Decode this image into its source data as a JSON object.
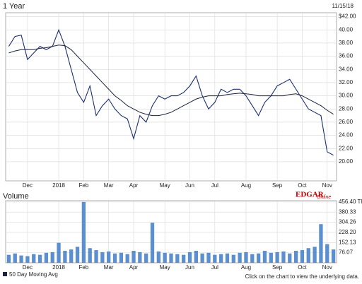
{
  "chart_data": [
    {
      "type": "line",
      "title": "1 Year",
      "subtitle": "11/15/18",
      "categories": [
        null,
        null,
        null,
        "Dec",
        null,
        null,
        null,
        null,
        "2018",
        null,
        null,
        null,
        "Feb",
        null,
        null,
        null,
        "Mar",
        null,
        null,
        null,
        "Apr",
        null,
        null,
        null,
        null,
        "May",
        null,
        null,
        null,
        "Jun",
        null,
        null,
        null,
        "Jul",
        null,
        null,
        null,
        null,
        "Aug",
        null,
        null,
        null,
        null,
        "Sep",
        null,
        null,
        null,
        "Oct",
        null,
        null,
        null,
        "Nov",
        null
      ],
      "series": [
        {
          "color": "#1c2f6e",
          "values": [
            37.5,
            39.0,
            39.2,
            35.5,
            36.5,
            37.5,
            37.0,
            37.5,
            40.0,
            37.5,
            34.0,
            30.5,
            29.0,
            31.5,
            27.0,
            28.5,
            29.5,
            28.0,
            27.0,
            26.5,
            23.5,
            27.0,
            26.0,
            28.5,
            30.0,
            29.5,
            30.0,
            30.0,
            30.5,
            31.5,
            33.0,
            30.0,
            28.0,
            29.0,
            31.0,
            30.5,
            31.0,
            31.0,
            30.0,
            28.5,
            27.0,
            29.0,
            30.0,
            31.5,
            32.0,
            32.5,
            31.0,
            29.5,
            28.0,
            27.5,
            27.0,
            21.5,
            21.0
          ]
        },
        {
          "name": "50 Day Moving Avg",
          "color": "#1b2340",
          "values": [
            36.5,
            36.8,
            37.0,
            37.0,
            37.0,
            37.2,
            37.3,
            37.5,
            37.7,
            37.6,
            37.0,
            36.0,
            35.0,
            34.0,
            33.0,
            32.0,
            31.0,
            30.0,
            29.3,
            28.5,
            28.0,
            27.5,
            27.2,
            27.0,
            27.0,
            27.2,
            27.5,
            28.0,
            28.5,
            29.0,
            29.5,
            29.8,
            30.0,
            30.0,
            30.0,
            30.2,
            30.3,
            30.4,
            30.3,
            30.2,
            30.0,
            30.0,
            30.0,
            30.0,
            30.0,
            30.2,
            30.3,
            30.0,
            29.5,
            29.0,
            28.5,
            27.8,
            27.2
          ]
        }
      ],
      "ylim": [
        17.1,
        42.6
      ],
      "yticks": [
        {
          "value": 42,
          "label": "$42.00"
        },
        {
          "value": 40,
          "label": "40.00"
        },
        {
          "value": 38,
          "label": "38.00"
        },
        {
          "value": 36,
          "label": "36.00"
        },
        {
          "value": 34,
          "label": "34.00"
        },
        {
          "value": 32,
          "label": "32.00"
        },
        {
          "value": 30,
          "label": "30.00"
        },
        {
          "value": 28,
          "label": "28.00"
        },
        {
          "value": 26,
          "label": "26.00"
        },
        {
          "value": 24,
          "label": "24.00"
        },
        {
          "value": 22,
          "label": "22.00"
        },
        {
          "value": 20,
          "label": "20.00"
        }
      ],
      "grid": true,
      "legend": "bottom-left"
    },
    {
      "type": "bar",
      "title": "Volume",
      "brand": [
        "EDGAR",
        "Online"
      ],
      "annotation": "Click on the chart to view the underlying data.",
      "categories": [
        null,
        null,
        null,
        "Dec",
        null,
        null,
        null,
        null,
        "2018",
        null,
        null,
        null,
        "Feb",
        null,
        null,
        null,
        "Mar",
        null,
        null,
        null,
        "Apr",
        null,
        null,
        null,
        null,
        "May",
        null,
        null,
        null,
        "Jun",
        null,
        null,
        null,
        "Jul",
        null,
        null,
        null,
        null,
        "Aug",
        null,
        null,
        null,
        null,
        "Sep",
        null,
        null,
        null,
        "Oct",
        null,
        null,
        null,
        "Nov",
        null
      ],
      "color": "#5b8fd0",
      "values": [
        60,
        70,
        55,
        50,
        65,
        60,
        75,
        80,
        150,
        90,
        100,
        120,
        456,
        110,
        95,
        80,
        85,
        70,
        75,
        65,
        90,
        80,
        70,
        300,
        85,
        75,
        70,
        65,
        60,
        80,
        90,
        70,
        75,
        60,
        65,
        70,
        60,
        75,
        80,
        65,
        70,
        90,
        75,
        80,
        85,
        70,
        90,
        95,
        110,
        120,
        290,
        140,
        100
      ],
      "ylim": [
        0,
        466
      ],
      "yticks": [
        {
          "value": 456.4,
          "label": "456.40 Th"
        },
        {
          "value": 380.33,
          "label": "380.33"
        },
        {
          "value": 304.26,
          "label": "304.26"
        },
        {
          "value": 228.2,
          "label": "228.20"
        },
        {
          "value": 152.13,
          "label": "152.13"
        },
        {
          "value": 76.07,
          "label": "76.07"
        }
      ],
      "grid": true
    }
  ]
}
